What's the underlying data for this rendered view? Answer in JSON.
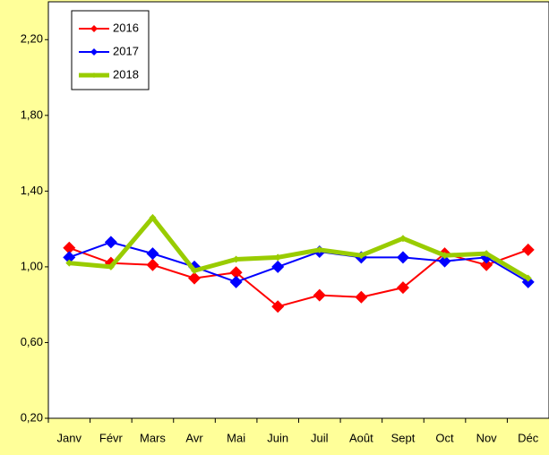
{
  "chart_data": {
    "type": "line",
    "categories": [
      "Janv",
      "Févr",
      "Mars",
      "Avr",
      "Mai",
      "Juin",
      "Juil",
      "Août",
      "Sept",
      "Oct",
      "Nov",
      "Déc"
    ],
    "series": [
      {
        "name": "2016",
        "color": "#ff0000",
        "width": 2,
        "values": [
          1.1,
          1.02,
          1.01,
          0.94,
          0.97,
          0.79,
          0.85,
          0.84,
          0.89,
          1.07,
          1.01,
          1.09
        ]
      },
      {
        "name": "2017",
        "color": "#0000ff",
        "width": 2,
        "values": [
          1.05,
          1.13,
          1.07,
          1.0,
          0.92,
          1.0,
          1.08,
          1.05,
          1.05,
          1.03,
          1.05,
          0.92
        ]
      },
      {
        "name": "2018",
        "color": "#99cc00",
        "width": 5,
        "values": [
          1.02,
          1.0,
          1.26,
          0.98,
          1.04,
          1.05,
          1.09,
          1.06,
          1.15,
          1.06,
          1.07,
          0.94
        ]
      }
    ],
    "ylim": [
      0.2,
      2.4
    ],
    "yticks": [
      {
        "value": 0.2,
        "label": "0,20"
      },
      {
        "value": 0.6,
        "label": "0,60"
      },
      {
        "value": 1.0,
        "label": "1,00"
      },
      {
        "value": 1.4,
        "label": "1,40"
      },
      {
        "value": 1.8,
        "label": "1,80"
      },
      {
        "value": 2.2,
        "label": "2,20"
      }
    ],
    "grid": false,
    "legend": "top-left"
  }
}
